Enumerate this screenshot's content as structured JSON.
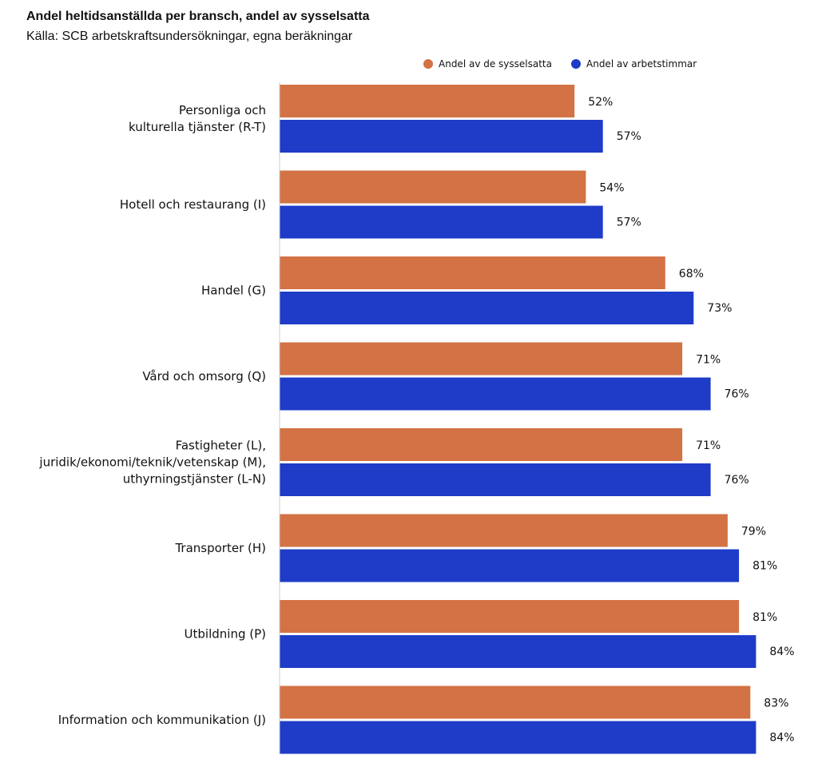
{
  "chart_data": {
    "type": "bar",
    "orientation": "horizontal",
    "title": "Andel heltidsanställda per bransch, andel av sysselsatta",
    "subtitle": "Källa: SCB arbetskraftsundersökningar, egna beräkningar",
    "xlabel": "",
    "ylabel": "",
    "xlim": [
      0,
      100
    ],
    "legend_position": "top-right",
    "categories": [
      [
        "Personliga och",
        "kulturella tjänster (R-T)"
      ],
      [
        "Hotell och restaurang (I)"
      ],
      [
        "Handel (G)"
      ],
      [
        "Vård och omsorg (Q)"
      ],
      [
        "Fastigheter (L),",
        "juridik/ekonomi/teknik/vetenskap (M),",
        "uthyrningstjänster (L-N)"
      ],
      [
        "Transporter (H)"
      ],
      [
        "Utbildning (P)"
      ],
      [
        "Information och kommunikation (J)"
      ]
    ],
    "series": [
      {
        "name": "Andel av de sysselsatta",
        "color": "#D37244",
        "values": [
          52,
          54,
          68,
          71,
          71,
          79,
          81,
          83
        ],
        "labels": [
          "52%",
          "54%",
          "68%",
          "71%",
          "71%",
          "79%",
          "81%",
          "83%"
        ]
      },
      {
        "name": "Andel av arbetstimmar",
        "color": "#1E3CC8",
        "values": [
          57,
          57,
          73,
          76,
          76,
          81,
          84,
          84
        ],
        "labels": [
          "57%",
          "57%",
          "73%",
          "76%",
          "76%",
          "81%",
          "84%",
          "84%"
        ]
      }
    ]
  }
}
